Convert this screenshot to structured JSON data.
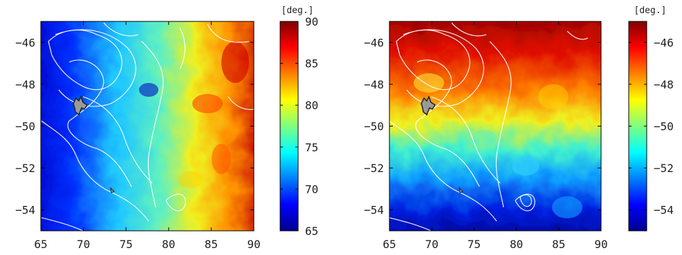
{
  "chart_data": [
    {
      "type": "heatmap",
      "title": "",
      "xlabel": "",
      "ylabel": "",
      "xlim": [
        65,
        90
      ],
      "ylim": [
        -55,
        -45
      ],
      "xticks": [
        65,
        70,
        75,
        80,
        85,
        90
      ],
      "yticks": [
        -46,
        -48,
        -50,
        -52,
        -54
      ],
      "colorbar": {
        "unit": "[deg.]",
        "range": [
          65,
          90
        ],
        "ticks": [
          65,
          70,
          75,
          80,
          85,
          90
        ],
        "colormap": "jet"
      },
      "field_description": "tracer longitude: low (65-70) west, increasing to 85-90 east, with eddies",
      "contours": "white bathymetry contours and coastline",
      "island": "gray island near 69.5E, -49.3"
    },
    {
      "type": "heatmap",
      "title": "",
      "xlabel": "",
      "ylabel": "",
      "xlim": [
        65,
        90
      ],
      "ylim": [
        -55,
        -45
      ],
      "xticks": [
        65,
        70,
        75,
        80,
        85,
        90
      ],
      "yticks": [
        -46,
        -48,
        -50,
        -52,
        -54
      ],
      "colorbar": {
        "unit": "[deg.]",
        "range": [
          -55,
          -45
        ],
        "ticks": [
          -46,
          -48,
          -50,
          -52,
          -54
        ],
        "colormap": "jet"
      },
      "field_description": "tracer latitude: high (-46) north, decreasing to -54 south, with eddies",
      "contours": "white bathymetry contours and coastline",
      "island": "gray island near 69.5E, -49.3"
    }
  ]
}
